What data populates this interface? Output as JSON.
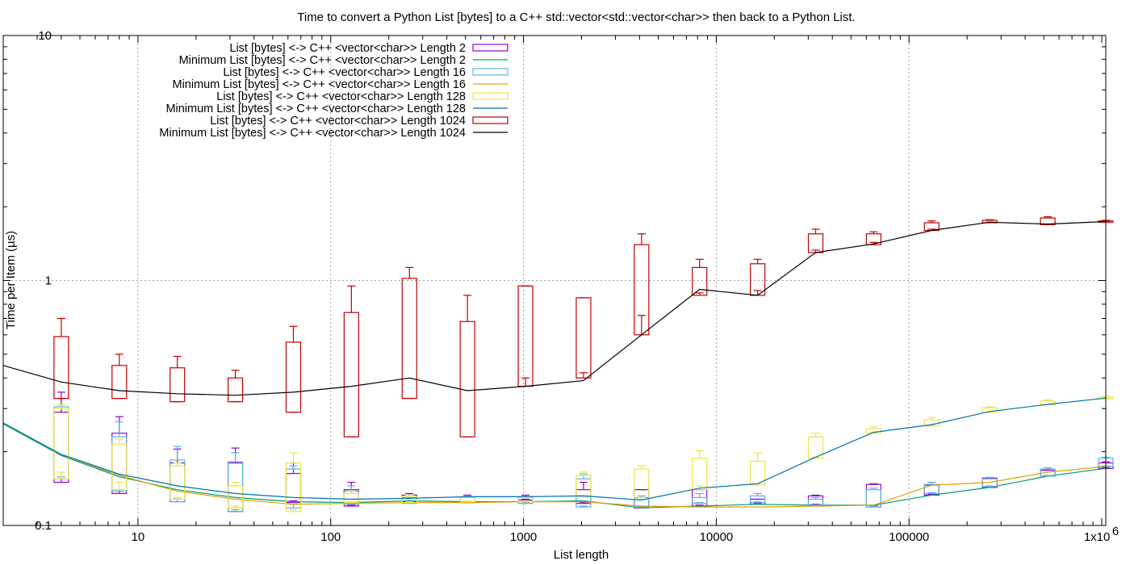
{
  "chart_data": {
    "type": "line",
    "title": "Time to convert a Python List [bytes] to a C++ std::vector<std::vector<char>> then back to a Python List.",
    "xlabel": "List length",
    "ylabel": "Time per Item (µs)",
    "x_scale": "log",
    "y_scale": "log",
    "xlim": [
      2,
      1048576
    ],
    "ylim": [
      0.1,
      10
    ],
    "x_ticks": [
      {
        "value": 10,
        "label": "10"
      },
      {
        "value": 100,
        "label": "100"
      },
      {
        "value": 1000,
        "label": "1000"
      },
      {
        "value": 10000,
        "label": "10000"
      },
      {
        "value": 100000,
        "label": "100000"
      }
    ],
    "x_tick_last": {
      "value": 1000000,
      "base": "1x10",
      "exp": "6"
    },
    "y_ticks": [
      {
        "value": 0.1,
        "label": "0.1"
      },
      {
        "value": 1,
        "label": "1"
      },
      {
        "value": 10,
        "label": "10"
      }
    ],
    "grid": true,
    "legend_position": "top-left",
    "x": [
      2,
      4,
      8,
      16,
      32,
      64,
      128,
      256,
      512,
      1024,
      2048,
      4096,
      8192,
      16384,
      32768,
      65536,
      131072,
      262144,
      524288,
      1048576
    ],
    "series": [
      {
        "name": "List [bytes] <-> C++ <vector<char>> Length 2",
        "kind": "box",
        "color": "#9400d3",
        "boxes": [
          [
            4,
            0.155,
            0.15,
            0.29,
            0.35
          ],
          [
            8,
            0.138,
            0.135,
            0.238,
            0.278
          ],
          [
            16,
            0.128,
            0.125,
            0.18,
            0.205
          ],
          [
            32,
            0.114,
            0.114,
            0.18,
            0.207
          ],
          [
            64,
            0.126,
            0.124,
            0.163,
            0.18
          ],
          [
            128,
            0.121,
            0.12,
            0.14,
            0.15
          ],
          [
            256,
            0.126,
            0.125,
            0.133,
            0.135
          ],
          [
            512,
            0.125,
            0.124,
            0.13,
            0.133
          ],
          [
            1024,
            0.128,
            0.127,
            0.131,
            0.133
          ],
          [
            2048,
            0.124,
            0.123,
            0.14,
            0.15
          ],
          [
            4096,
            0.119,
            0.118,
            0.14,
            0.14
          ],
          [
            8192,
            0.121,
            0.12,
            0.14,
            0.14
          ],
          [
            16384,
            0.123,
            0.122,
            0.128,
            0.128
          ],
          [
            32768,
            0.122,
            0.121,
            0.132,
            0.133
          ],
          [
            65536,
            0.121,
            0.119,
            0.147,
            0.148
          ],
          [
            131072,
            0.134,
            0.133,
            0.146,
            0.15
          ],
          [
            262144,
            0.144,
            0.143,
            0.156,
            0.157
          ],
          [
            524288,
            0.16,
            0.159,
            0.168,
            0.17
          ],
          [
            1048576,
            0.172,
            0.171,
            0.18,
            0.182
          ]
        ]
      },
      {
        "name": "Minimum List [bytes] <-> C++ <vector<char>> Length 2",
        "kind": "line",
        "color": "#009e73",
        "values": [
          0.26,
          0.193,
          0.158,
          0.14,
          0.13,
          0.125,
          0.124,
          0.126,
          0.125,
          0.125,
          0.126,
          0.118,
          0.12,
          0.122,
          0.121,
          0.121,
          0.133,
          0.143,
          0.159,
          0.171
        ]
      },
      {
        "name": "List [bytes] <-> C++ <vector<char>> Length 16",
        "kind": "box",
        "color": "#56b4e9",
        "boxes": [
          [
            4,
            0.158,
            0.155,
            0.305,
            0.31
          ],
          [
            8,
            0.14,
            0.138,
            0.23,
            0.265
          ],
          [
            16,
            0.128,
            0.125,
            0.185,
            0.21
          ],
          [
            32,
            0.116,
            0.114,
            0.182,
            0.198
          ],
          [
            64,
            0.122,
            0.118,
            0.17,
            0.175
          ],
          [
            128,
            0.123,
            0.122,
            0.138,
            0.145
          ],
          [
            256,
            0.124,
            0.123,
            0.13,
            0.133
          ],
          [
            512,
            0.125,
            0.124,
            0.13,
            0.132
          ],
          [
            1024,
            0.124,
            0.123,
            0.13,
            0.131
          ],
          [
            2048,
            0.12,
            0.119,
            0.155,
            0.162
          ],
          [
            4096,
            0.12,
            0.119,
            0.13,
            0.132
          ],
          [
            8192,
            0.124,
            0.123,
            0.13,
            0.135
          ],
          [
            16384,
            0.125,
            0.124,
            0.132,
            0.135
          ],
          [
            32768,
            0.121,
            0.12,
            0.128,
            0.13
          ],
          [
            65536,
            0.12,
            0.119,
            0.14,
            0.142
          ],
          [
            131072,
            0.136,
            0.135,
            0.147,
            0.15
          ],
          [
            262144,
            0.145,
            0.144,
            0.155,
            0.157
          ],
          [
            524288,
            0.16,
            0.159,
            0.17,
            0.172
          ],
          [
            1048576,
            0.175,
            0.174,
            0.188,
            0.19
          ]
        ]
      },
      {
        "name": "Minimum List [bytes] <-> C++ <vector<char>> Length 16",
        "kind": "line",
        "color": "#e69f00",
        "values": [
          0.262,
          0.195,
          0.16,
          0.138,
          0.128,
          0.122,
          0.123,
          0.124,
          0.124,
          0.125,
          0.125,
          0.12,
          0.119,
          0.119,
          0.12,
          0.121,
          0.146,
          0.15,
          0.165,
          0.174
        ]
      },
      {
        "name": "List [bytes] <-> C++ <vector<char>> Length 128",
        "kind": "box",
        "color": "#f0e442",
        "boxes": [
          [
            4,
            0.165,
            0.155,
            0.3,
            0.31
          ],
          [
            8,
            0.15,
            0.14,
            0.215,
            0.225
          ],
          [
            16,
            0.13,
            0.128,
            0.175,
            0.18
          ],
          [
            32,
            0.12,
            0.118,
            0.145,
            0.15
          ],
          [
            64,
            0.116,
            0.114,
            0.18,
            0.198
          ],
          [
            128,
            0.125,
            0.124,
            0.135,
            0.138
          ],
          [
            256,
            0.125,
            0.124,
            0.131,
            0.133
          ],
          [
            512,
            0.126,
            0.125,
            0.13,
            0.131
          ],
          [
            1024,
            0.126,
            0.125,
            0.13,
            0.131
          ],
          [
            2048,
            0.132,
            0.13,
            0.16,
            0.165
          ],
          [
            4096,
            0.13,
            0.128,
            0.17,
            0.175
          ],
          [
            8192,
            0.145,
            0.14,
            0.188,
            0.202
          ],
          [
            16384,
            0.148,
            0.146,
            0.183,
            0.198
          ],
          [
            32768,
            0.19,
            0.188,
            0.23,
            0.238
          ],
          [
            65536,
            0.24,
            0.238,
            0.248,
            0.252
          ],
          [
            131072,
            0.256,
            0.255,
            0.27,
            0.276
          ],
          [
            262144,
            0.29,
            0.289,
            0.302,
            0.305
          ],
          [
            524288,
            0.312,
            0.311,
            0.322,
            0.325
          ],
          [
            1048576,
            0.33,
            0.329,
            0.334,
            0.336
          ]
        ]
      },
      {
        "name": "Minimum List [bytes] <-> C++ <vector<char>> Length 128",
        "kind": "line",
        "color": "#0072b2",
        "values": [
          0.262,
          0.195,
          0.162,
          0.145,
          0.135,
          0.13,
          0.128,
          0.129,
          0.131,
          0.131,
          0.132,
          0.127,
          0.142,
          0.148,
          0.19,
          0.24,
          0.258,
          0.292,
          0.312,
          0.331
        ]
      },
      {
        "name": "List [bytes] <-> C++ <vector<char>> Length 1024",
        "kind": "box",
        "color": "#c00000",
        "boxes": [
          [
            4,
            0.33,
            0.33,
            0.59,
            0.7
          ],
          [
            8,
            0.33,
            0.33,
            0.45,
            0.5
          ],
          [
            16,
            0.32,
            0.32,
            0.44,
            0.49
          ],
          [
            32,
            0.32,
            0.32,
            0.4,
            0.43
          ],
          [
            64,
            0.29,
            0.29,
            0.56,
            0.65
          ],
          [
            128,
            0.23,
            0.23,
            0.74,
            0.95
          ],
          [
            256,
            0.33,
            0.33,
            1.02,
            1.13
          ],
          [
            512,
            0.23,
            0.23,
            0.68,
            0.87
          ],
          [
            1024,
            0.4,
            0.37,
            0.95,
            0.95
          ],
          [
            2048,
            0.42,
            0.4,
            0.85,
            0.85
          ],
          [
            4096,
            0.72,
            0.6,
            1.4,
            1.55
          ],
          [
            8192,
            0.89,
            0.87,
            1.13,
            1.22
          ],
          [
            16384,
            0.91,
            0.87,
            1.17,
            1.22
          ],
          [
            32768,
            1.33,
            1.3,
            1.55,
            1.62
          ],
          [
            65536,
            1.43,
            1.4,
            1.55,
            1.58
          ],
          [
            131072,
            1.62,
            1.6,
            1.72,
            1.75
          ],
          [
            262144,
            1.73,
            1.72,
            1.76,
            1.77
          ],
          [
            524288,
            1.7,
            1.69,
            1.8,
            1.82
          ],
          [
            1048576,
            1.74,
            1.73,
            1.75,
            1.76
          ]
        ]
      },
      {
        "name": "Minimum List [bytes] <-> C++ <vector<char>> Length 1024",
        "kind": "line",
        "color": "#000000",
        "values": [
          0.45,
          0.385,
          0.355,
          0.345,
          0.34,
          0.35,
          0.37,
          0.4,
          0.355,
          0.37,
          0.39,
          0.6,
          0.92,
          0.87,
          1.3,
          1.41,
          1.6,
          1.73,
          1.7,
          1.74
        ]
      }
    ]
  }
}
